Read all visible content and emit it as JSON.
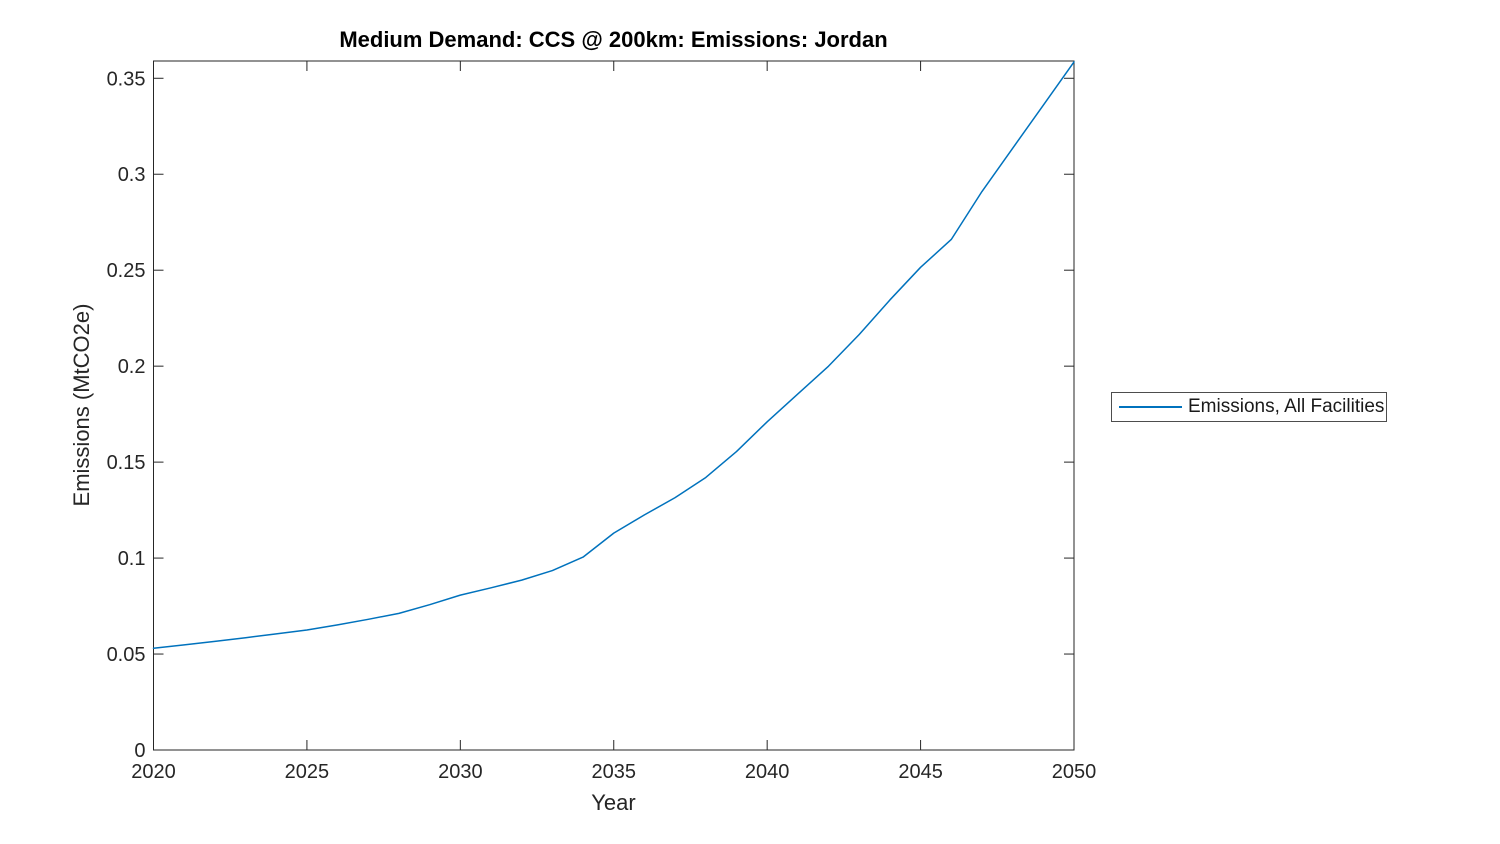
{
  "figure": {
    "title": "Medium Demand: CCS @ 200km: Emissions: Jordan",
    "xlabel": "Year",
    "ylabel": "Emissions (MtCO2e)"
  },
  "legend": {
    "entries": [
      {
        "label": "Emissions, All Facilities",
        "color": "#0072BD"
      }
    ]
  },
  "colors": {
    "line": "#0072BD",
    "axis": "#262626",
    "tick_text": "#262626",
    "background": "#ffffff"
  },
  "chart_data": {
    "type": "line",
    "title": "Medium Demand: CCS @ 200km: Emissions: Jordan",
    "xlabel": "Year",
    "ylabel": "Emissions (MtCO2e)",
    "xlim": [
      2020,
      2050
    ],
    "ylim": [
      0,
      0.359
    ],
    "xticks": [
      2020,
      2025,
      2030,
      2035,
      2040,
      2045,
      2050
    ],
    "xtick_labels": [
      "2020",
      "2025",
      "2030",
      "2035",
      "2040",
      "2045",
      "2050"
    ],
    "yticks": [
      0,
      0.05,
      0.1,
      0.15,
      0.2,
      0.25,
      0.3,
      0.35
    ],
    "ytick_labels": [
      "0",
      "0.05",
      "0.1",
      "0.15",
      "0.2",
      "0.25",
      "0.3",
      "0.35"
    ],
    "grid": false,
    "legend_position": "outside-right",
    "series": [
      {
        "name": "Emissions, All Facilities",
        "color": "#0072BD",
        "x": [
          2020,
          2021,
          2022,
          2023,
          2024,
          2025,
          2026,
          2027,
          2028,
          2029,
          2030,
          2031,
          2032,
          2033,
          2034,
          2035,
          2036,
          2037,
          2038,
          2039,
          2040,
          2041,
          2042,
          2043,
          2044,
          2045,
          2046,
          2047,
          2048,
          2049,
          2050
        ],
        "y": [
          0.053,
          0.0548,
          0.0566,
          0.0585,
          0.0605,
          0.0625,
          0.0652,
          0.0681,
          0.0712,
          0.0757,
          0.0807,
          0.0845,
          0.0885,
          0.0935,
          0.1005,
          0.113,
          0.1225,
          0.1315,
          0.142,
          0.1555,
          0.171,
          0.1855,
          0.2,
          0.2165,
          0.2345,
          0.2515,
          0.266,
          0.291,
          0.3135,
          0.336,
          0.3585
        ]
      }
    ]
  }
}
